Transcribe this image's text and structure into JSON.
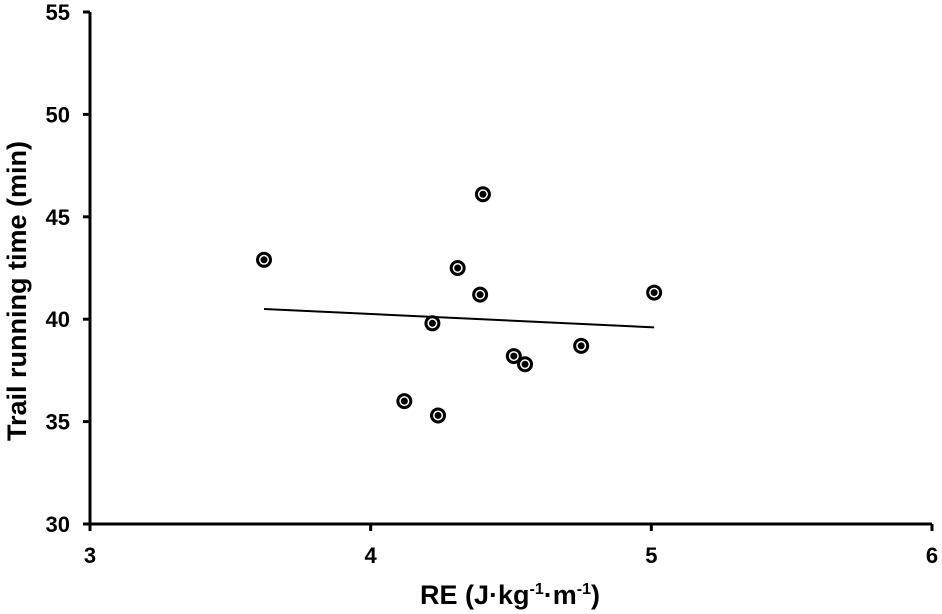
{
  "chart_data": {
    "type": "scatter",
    "title": "",
    "xlabel": {
      "base": "RE (J·kg",
      "sup1": "-1",
      "mid": "·m",
      "sup2": "-1",
      "end": ")"
    },
    "ylabel": "Trail running time (min)",
    "xlim": [
      3,
      6
    ],
    "ylim": [
      30,
      55
    ],
    "xticks": [
      3,
      4,
      5,
      6
    ],
    "yticks": [
      30,
      35,
      40,
      45,
      50,
      55
    ],
    "grid": false,
    "legend": "none",
    "series": [
      {
        "points": [
          {
            "x": 3.62,
            "y": 42.9
          },
          {
            "x": 4.12,
            "y": 36.0
          },
          {
            "x": 4.22,
            "y": 39.8
          },
          {
            "x": 4.24,
            "y": 35.3
          },
          {
            "x": 4.31,
            "y": 42.5
          },
          {
            "x": 4.39,
            "y": 41.2
          },
          {
            "x": 4.4,
            "y": 46.1
          },
          {
            "x": 4.51,
            "y": 38.2
          },
          {
            "x": 4.55,
            "y": 37.8
          },
          {
            "x": 4.75,
            "y": 38.7
          },
          {
            "x": 5.01,
            "y": 41.3
          }
        ]
      }
    ],
    "trendline": {
      "x": [
        3.62,
        5.01
      ],
      "y": [
        40.5,
        39.6
      ]
    },
    "colors": {
      "marker": "#000000",
      "line": "#000000",
      "axis": "#000000"
    }
  }
}
